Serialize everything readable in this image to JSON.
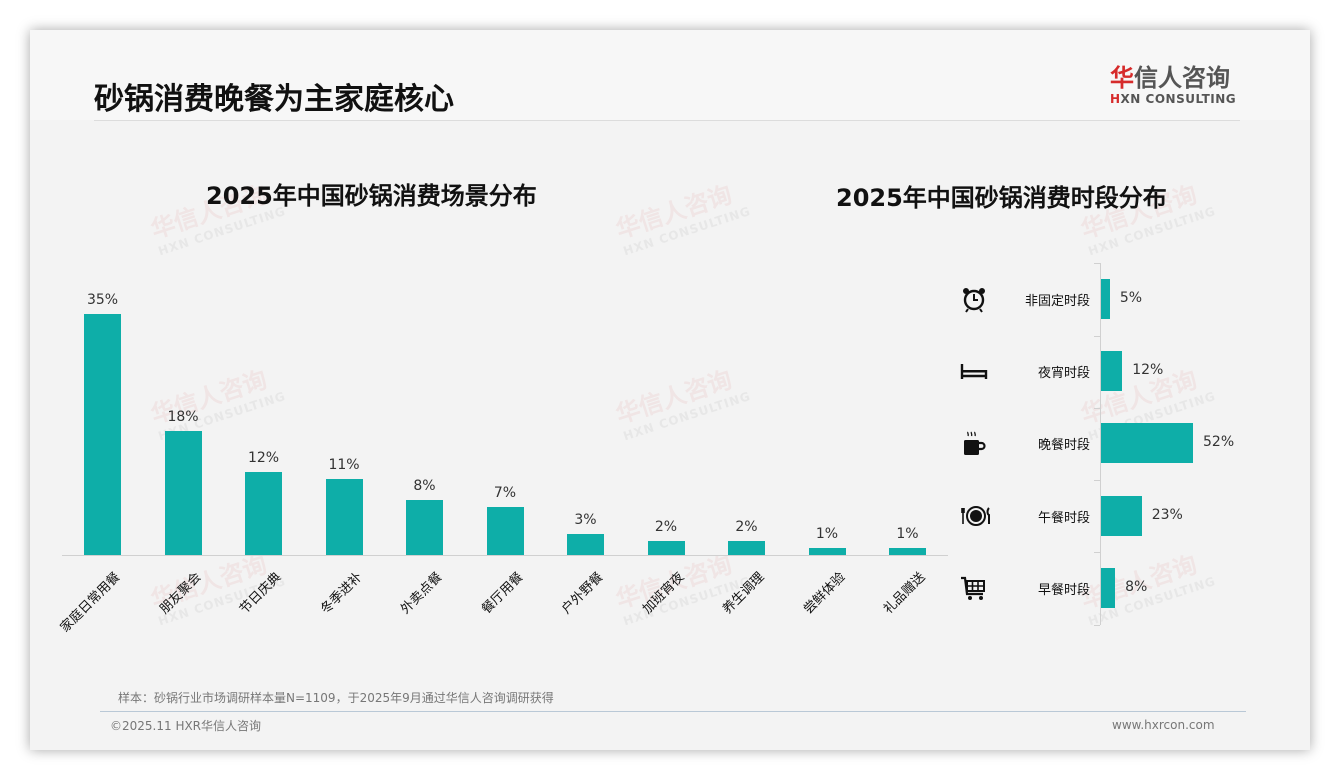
{
  "page": {
    "title": "砂锅消费晚餐为主家庭核心",
    "logo": {
      "cn_first": "华",
      "cn_rest": "信人咨询",
      "en_first": "H",
      "en_rest": "XN CONSULTING"
    },
    "note": "样本：砂锅行业市场调研样本量N=1109，于2025年9月通过华信人咨询调研获得",
    "copyright": "©2025.11 HXR华信人咨询",
    "website": "www.hxrcon.com",
    "watermark": {
      "cn": "华信人咨询",
      "en": "HXN CONSULTING"
    },
    "colors": {
      "bar": "#0eaea8",
      "logo_red": "#d62b2b",
      "background": "#f3f3f3"
    }
  },
  "chart_data": [
    {
      "type": "bar",
      "title": "2025年中国砂锅消费场景分布",
      "xlabel": "",
      "ylabel": "",
      "categories": [
        "家庭日常用餐",
        "朋友聚会",
        "节日庆典",
        "冬季进补",
        "外卖点餐",
        "餐厅用餐",
        "户外野餐",
        "加班宵夜",
        "养生调理",
        "尝鲜体验",
        "礼品赠送"
      ],
      "values": [
        35,
        18,
        12,
        11,
        8,
        7,
        3,
        2,
        2,
        1,
        1
      ],
      "labels": [
        "35%",
        "18%",
        "12%",
        "11%",
        "8%",
        "7%",
        "3%",
        "2%",
        "2%",
        "1%",
        "1%"
      ],
      "unit": "%",
      "grid": false,
      "legend": "none"
    },
    {
      "type": "bar",
      "orientation": "horizontal",
      "title": "2025年中国砂锅消费时段分布",
      "categories": [
        "非固定时段",
        "夜宵时段",
        "晚餐时段",
        "午餐时段",
        "早餐时段"
      ],
      "values": [
        5,
        12,
        52,
        23,
        8
      ],
      "labels": [
        "5%",
        "12%",
        "52%",
        "23%",
        "8%"
      ],
      "icons": [
        "alarm-clock-icon",
        "bed-icon",
        "coffee-cup-icon",
        "plate-cutlery-icon",
        "shopping-cart-icon"
      ],
      "unit": "%",
      "grid": false,
      "legend": "none"
    }
  ]
}
